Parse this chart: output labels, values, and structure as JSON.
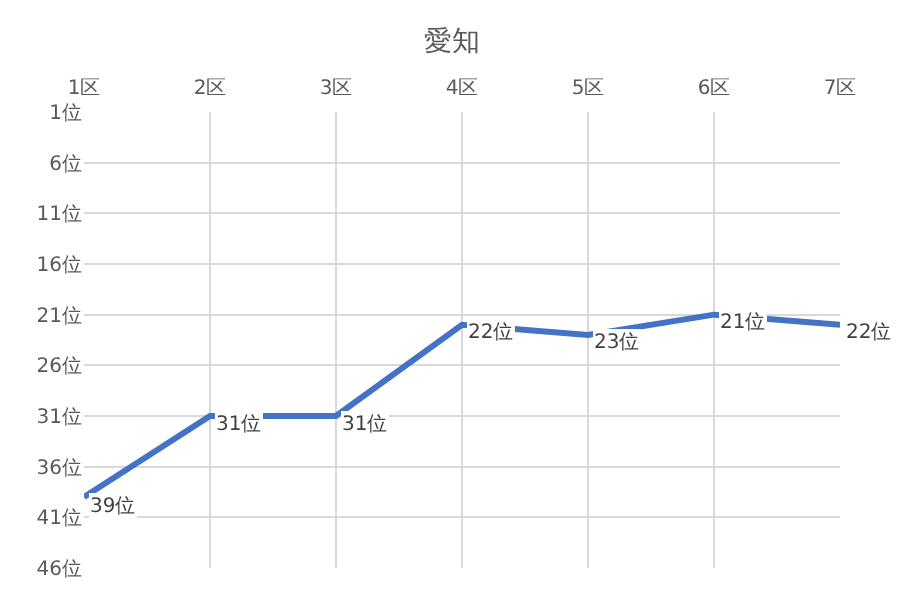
{
  "chart_data": {
    "type": "line",
    "title": "愛知",
    "categories": [
      "1区",
      "2区",
      "3区",
      "4区",
      "5区",
      "6区",
      "7区"
    ],
    "series": [
      {
        "color": "#4472c4",
        "values": [
          39,
          31,
          31,
          22,
          23,
          21,
          22
        ],
        "value_labels": [
          "39位",
          "31位",
          "31位",
          "22位",
          "23位",
          "21位",
          "22位"
        ]
      }
    ],
    "ylim": [
      46,
      1
    ],
    "yticks": [
      {
        "value": 1,
        "label": "1位"
      },
      {
        "value": 6,
        "label": "6位"
      },
      {
        "value": 11,
        "label": "11位"
      },
      {
        "value": 16,
        "label": "16位"
      },
      {
        "value": 21,
        "label": "21位"
      },
      {
        "value": 26,
        "label": "26位"
      },
      {
        "value": 31,
        "label": "31位"
      },
      {
        "value": 36,
        "label": "36位"
      },
      {
        "value": 41,
        "label": "41位"
      },
      {
        "value": 46,
        "label": "46位"
      }
    ],
    "grid": true,
    "marker": "none",
    "line_style": "solid"
  }
}
